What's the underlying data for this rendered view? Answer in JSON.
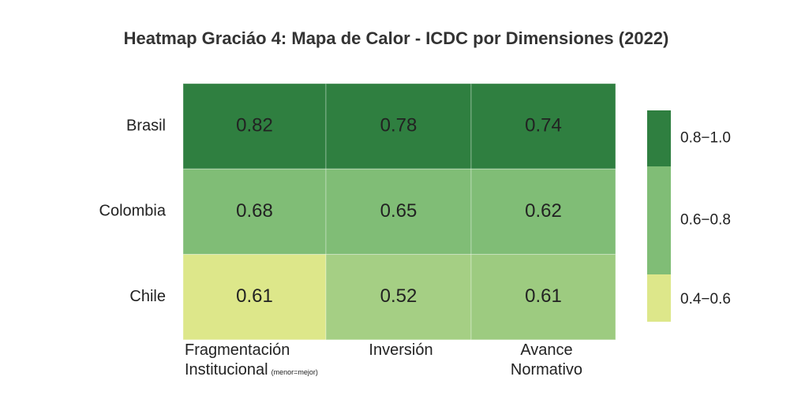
{
  "chart_data": {
    "type": "heatmap",
    "title": "Heatmap Graciáo 4: Mapa de Calor - ICDC por Dimensiones (2022)",
    "rows": [
      "Brasil",
      "Colombia",
      "Chile"
    ],
    "columns": [
      "Fragmentación Institucional",
      "Inversión",
      "Avance Normativo"
    ],
    "column_note": "(menor=mejor)",
    "values": [
      [
        0.82,
        0.78,
        0.74
      ],
      [
        0.68,
        0.65,
        0.62
      ],
      [
        0.61,
        0.52,
        0.61
      ]
    ],
    "cell_colors": [
      [
        "#2f7f40",
        "#2f7f40",
        "#2f7f40"
      ],
      [
        "#80bd76",
        "#80bd76",
        "#80bd76"
      ],
      [
        "#dde78a",
        "#a5cf84",
        "#9dcb80"
      ]
    ],
    "legend": [
      {
        "label": "0.8−1.0",
        "color": "#2f7f40"
      },
      {
        "label": "0.6−0.8",
        "color": "#80bd76"
      },
      {
        "label": "0.4−0.6",
        "color": "#dde78a"
      }
    ]
  }
}
